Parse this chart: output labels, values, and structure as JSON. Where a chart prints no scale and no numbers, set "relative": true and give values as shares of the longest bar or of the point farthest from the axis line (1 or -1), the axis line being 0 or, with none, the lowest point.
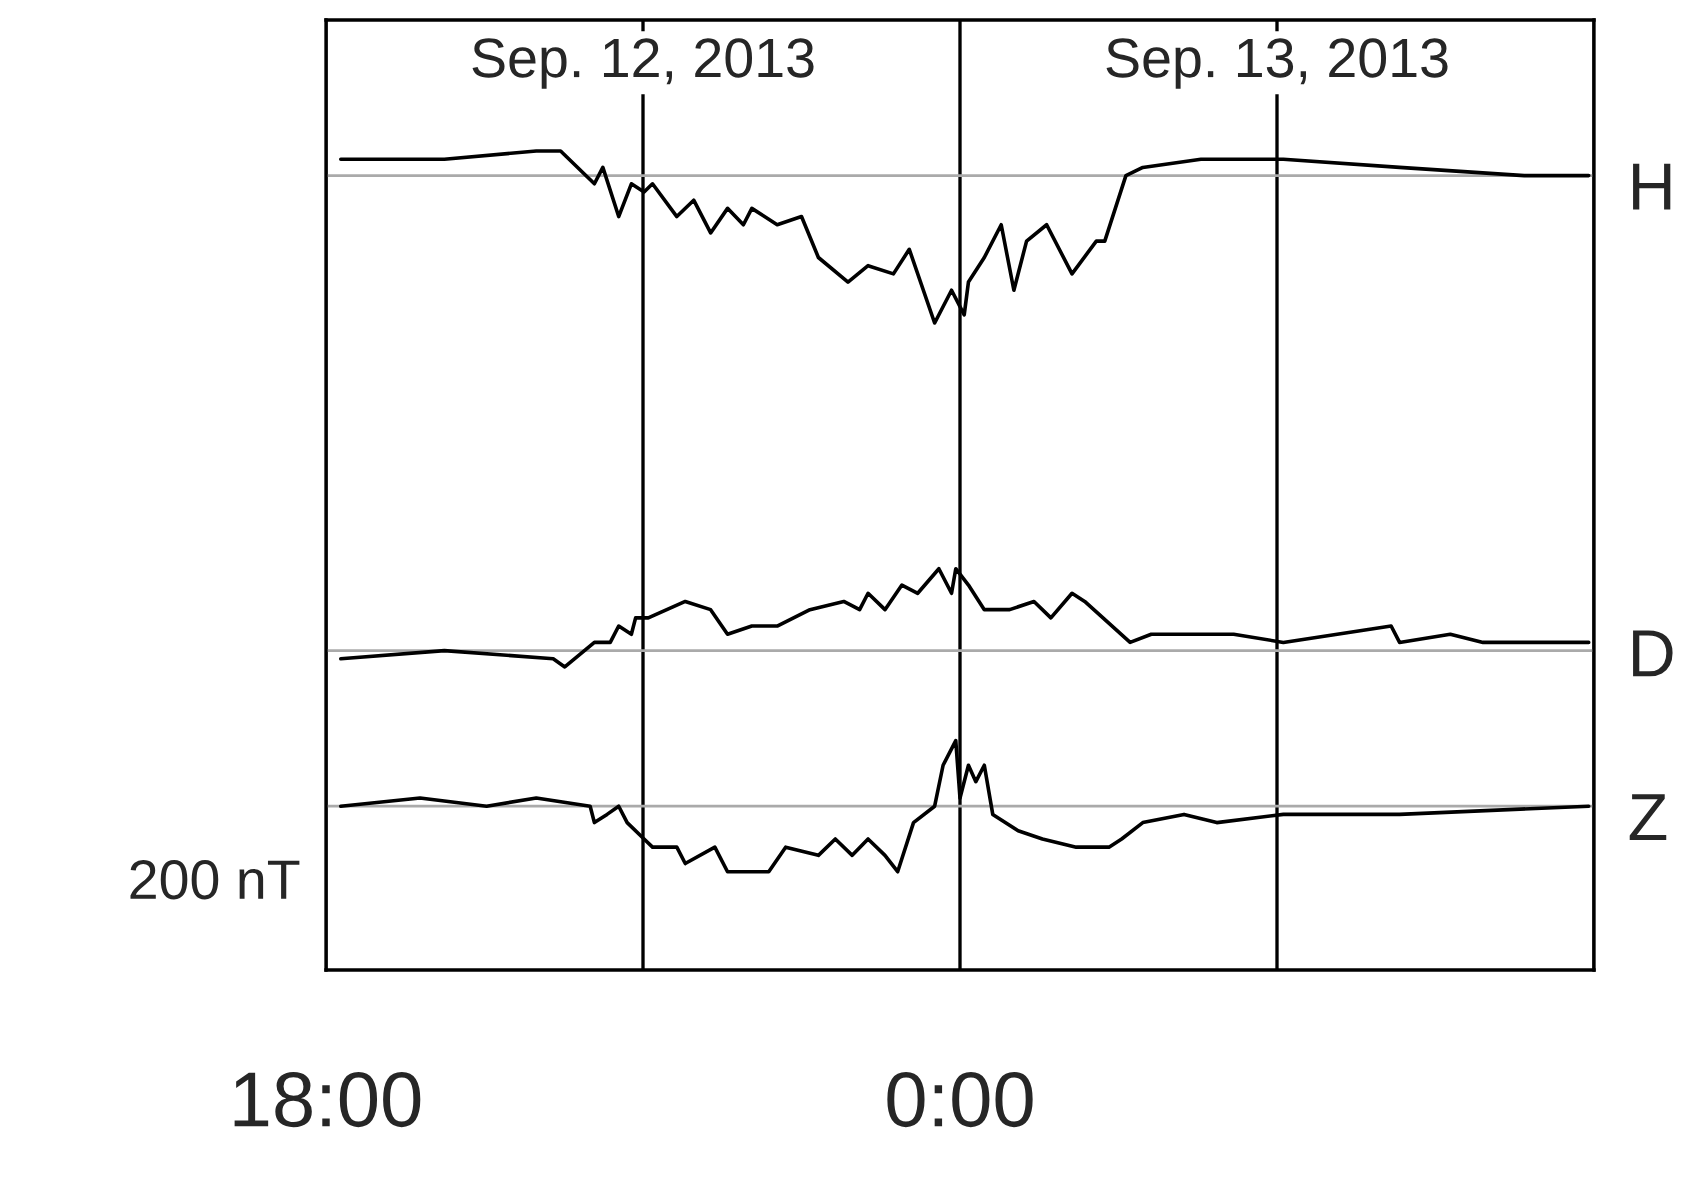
{
  "chart_data": {
    "type": "line",
    "relative": true,
    "annotations": [
      "Sep. 12, 2013",
      "Sep. 13, 2013",
      "200 nT"
    ],
    "xlim": [
      18,
      30
    ],
    "xticks": [
      {
        "value": 18,
        "label": "18:00"
      },
      {
        "value": 21,
        "label": null
      },
      {
        "value": 24,
        "label": "0:00"
      },
      {
        "value": 27,
        "label": null
      },
      {
        "value": 30,
        "label": null
      }
    ],
    "tick_labels": "x",
    "grid": "x",
    "legend": false,
    "ref_lines": [
      {
        "axis": "y",
        "value": 0.97,
        "color": "#aaaaaa"
      },
      {
        "axis": "y",
        "value": 0.39,
        "color": "#aaaaaa"
      },
      {
        "axis": "y",
        "value": 0.2,
        "color": "#aaaaaa"
      }
    ],
    "series": [
      {
        "name": "H",
        "color": "#000000",
        "x": [
          18.14,
          19.12,
          19.99,
          20.22,
          20.54,
          20.62,
          20.77,
          20.89,
          21.01,
          21.09,
          21.32,
          21.48,
          21.64,
          21.8,
          21.95,
          22.03,
          22.27,
          22.5,
          22.66,
          22.94,
          23.13,
          23.37,
          23.52,
          23.76,
          23.92,
          24.04,
          24.08,
          24.23,
          24.39,
          24.51,
          24.63,
          24.82,
          25.06,
          25.29,
          25.37,
          25.57,
          25.73,
          26.28,
          27.06,
          28.16,
          29.34,
          29.95
        ],
        "values": [
          0.99,
          0.99,
          1.0,
          1.0,
          0.96,
          0.98,
          0.92,
          0.96,
          0.95,
          0.96,
          0.92,
          0.94,
          0.9,
          0.93,
          0.91,
          0.93,
          0.91,
          0.92,
          0.87,
          0.84,
          0.86,
          0.85,
          0.88,
          0.79,
          0.83,
          0.8,
          0.84,
          0.87,
          0.91,
          0.83,
          0.89,
          0.91,
          0.85,
          0.89,
          0.89,
          0.97,
          0.98,
          0.99,
          0.99,
          0.98,
          0.97,
          0.97
        ]
      },
      {
        "name": "D",
        "color": "#000000",
        "x": [
          18.14,
          19.12,
          20.15,
          20.26,
          20.54,
          20.69,
          20.77,
          20.89,
          20.93,
          21.05,
          21.4,
          21.64,
          21.8,
          22.03,
          22.27,
          22.58,
          22.9,
          23.05,
          23.13,
          23.29,
          23.45,
          23.6,
          23.8,
          23.92,
          23.96,
          24.08,
          24.23,
          24.47,
          24.7,
          24.86,
          25.06,
          25.18,
          25.61,
          25.81,
          26.59,
          27.06,
          28.08,
          28.16,
          28.64,
          28.95,
          29.95
        ],
        "values": [
          0.38,
          0.39,
          0.38,
          0.37,
          0.4,
          0.4,
          0.42,
          0.41,
          0.43,
          0.43,
          0.45,
          0.44,
          0.41,
          0.42,
          0.42,
          0.44,
          0.45,
          0.44,
          0.46,
          0.44,
          0.47,
          0.46,
          0.49,
          0.46,
          0.49,
          0.47,
          0.44,
          0.44,
          0.45,
          0.43,
          0.46,
          0.45,
          0.4,
          0.41,
          0.41,
          0.4,
          0.42,
          0.4,
          0.41,
          0.4,
          0.4
        ]
      },
      {
        "name": "Z",
        "color": "#000000",
        "x": [
          18.14,
          18.89,
          19.52,
          19.99,
          20.5,
          20.54,
          20.66,
          20.77,
          20.85,
          21.01,
          21.09,
          21.32,
          21.4,
          21.68,
          21.8,
          22.19,
          22.35,
          22.66,
          22.82,
          22.98,
          23.13,
          23.29,
          23.41,
          23.56,
          23.76,
          23.84,
          23.96,
          24.0,
          24.08,
          24.15,
          24.23,
          24.31,
          24.55,
          24.78,
          25.1,
          25.41,
          25.53,
          25.73,
          26.12,
          26.43,
          27.06,
          28.16,
          29.95
        ],
        "values": [
          0.2,
          0.21,
          0.2,
          0.21,
          0.2,
          0.18,
          0.19,
          0.2,
          0.18,
          0.16,
          0.15,
          0.15,
          0.13,
          0.15,
          0.12,
          0.12,
          0.15,
          0.14,
          0.16,
          0.14,
          0.16,
          0.14,
          0.12,
          0.18,
          0.2,
          0.25,
          0.28,
          0.21,
          0.25,
          0.23,
          0.25,
          0.19,
          0.17,
          0.16,
          0.15,
          0.15,
          0.16,
          0.18,
          0.19,
          0.18,
          0.19,
          0.19,
          0.2
        ]
      }
    ]
  }
}
